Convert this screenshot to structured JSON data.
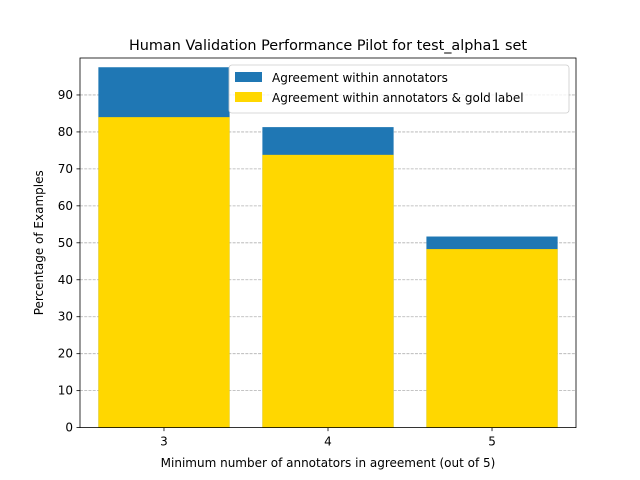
{
  "chart_data": {
    "type": "bar",
    "title": "Human Validation Performance Pilot for test_alpha1 set",
    "xlabel": "Minimum number of annotators in agreement (out of 5)",
    "ylabel": "Percentage of Examples",
    "categories": [
      "3",
      "4",
      "5"
    ],
    "series": [
      {
        "name": "Agreement within annotators",
        "color": "#1f77b4",
        "values": [
          97.5,
          81.3,
          51.7
        ]
      },
      {
        "name": "Agreement within annotators & gold label",
        "color": "#ffd700",
        "values": [
          84.0,
          73.8,
          48.3
        ]
      }
    ],
    "ylim": [
      0,
      100
    ],
    "yticks": [
      0,
      10,
      20,
      30,
      40,
      50,
      60,
      70,
      80,
      90
    ],
    "grid": "y",
    "legend_position": "top-right"
  }
}
